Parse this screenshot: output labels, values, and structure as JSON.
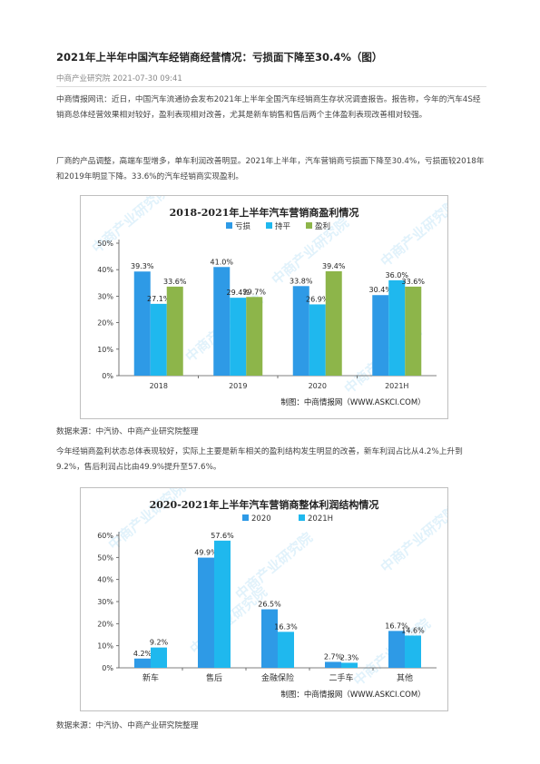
{
  "article": {
    "title": "2021年上半年中国汽车经销商经营情况：亏损面下降至30.4%（图）",
    "source_date": "中商产业研究院 2021-07-30 09:41",
    "para1": "中商情报网讯：近日，中国汽车流通协会发布2021年上半年全国汽车经销商生存状况调查报告。报告称，今年的汽车4S经销商总体经营效果相对较好，盈利表现相对改善，尤其是新车销售和售后两个主体盈利表现改善相对较强。",
    "para2": "厂商的产品调整，高端车型增多，单车利润改善明显。2021年上半年，汽车营销商亏损面下降至30.4%，亏损面较2018年和2019年明显下降。33.6%的汽车经销商实现盈利。",
    "caption1": "数据来源：中汽协、中商产业研究院整理",
    "para3": "今年经销商盈利状态总体表现较好，实际上主要是新车相关的盈利结构发生明显的改善，新车利润占比从4.2%上升到9.2%，售后利润占比由49.9%提升至57.6%。",
    "caption2": "数据来源：中汽协、中商产业研究院整理"
  },
  "watermark": "中商产业研究院",
  "chart_data": [
    {
      "type": "bar",
      "title": "2018-2021年上半年汽车营销商盈利情况",
      "categories": [
        "2018",
        "2019",
        "2020",
        "2021H"
      ],
      "series": [
        {
          "name": "亏损",
          "values": [
            39.3,
            41.0,
            33.8,
            30.4
          ]
        },
        {
          "name": "持平",
          "values": [
            27.1,
            29.4,
            26.9,
            36.0
          ]
        },
        {
          "name": "盈利",
          "values": [
            33.6,
            29.7,
            39.4,
            33.6
          ]
        }
      ],
      "data_labels": [
        [
          "39.3%",
          "27.1%",
          "33.6%"
        ],
        [
          "41.0%",
          "29.4%",
          "29.7%"
        ],
        [
          "33.8%",
          "26.9%",
          "39.4%"
        ],
        [
          "30.4%",
          "36.0%",
          "33.6%"
        ]
      ],
      "ylim": [
        0,
        50
      ],
      "yticks": [
        "0%",
        "10%",
        "20%",
        "30%",
        "40%",
        "50%"
      ],
      "colors": [
        "#2e9ae6",
        "#1fb8ee",
        "#8db54a"
      ],
      "legend": "top",
      "credit": "制图：中商情报网（WWW.ASKCI.COM）",
      "grid": false
    },
    {
      "type": "bar",
      "title": "2020-2021年上半年汽车营销商整体利润结构情况",
      "categories": [
        "新车",
        "售后",
        "金融保险",
        "二手车",
        "其他"
      ],
      "series": [
        {
          "name": "2020",
          "values": [
            4.2,
            49.9,
            26.5,
            2.7,
            16.7
          ]
        },
        {
          "name": "2021H",
          "values": [
            9.2,
            57.6,
            16.3,
            2.3,
            14.6
          ]
        }
      ],
      "data_labels": [
        [
          "4.2%",
          "9.2%"
        ],
        [
          "49.9%",
          "57.6%"
        ],
        [
          "26.5%",
          "16.3%"
        ],
        [
          "2.7%",
          "2.3%"
        ],
        [
          "16.7%",
          "14.6%"
        ]
      ],
      "ylim": [
        0,
        60
      ],
      "yticks": [
        "0%",
        "10%",
        "20%",
        "30%",
        "40%",
        "50%",
        "60%"
      ],
      "colors": [
        "#2e9ae6",
        "#1fb8ee"
      ],
      "legend": "top",
      "credit": "制图：中商情报网（WWW.ASKCI.COM）",
      "grid": false
    }
  ]
}
